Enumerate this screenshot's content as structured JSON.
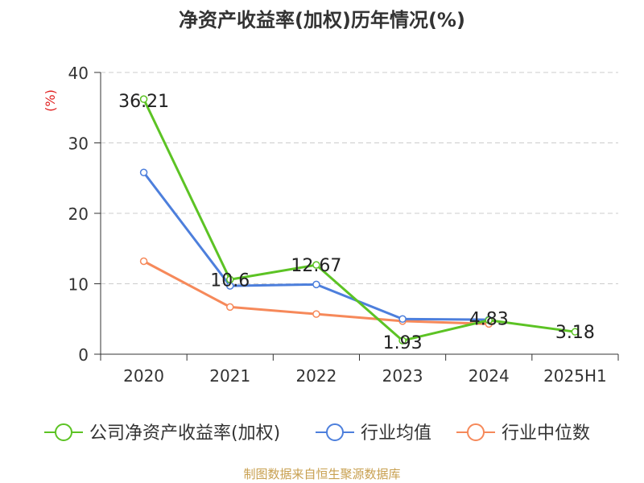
{
  "chart_data": {
    "type": "line",
    "title": "净资产收益率(加权)历年情况(%)",
    "ylabel": "(%)",
    "xlabel": "",
    "categories": [
      "2020",
      "2021",
      "2022",
      "2023",
      "2024",
      "2025H1"
    ],
    "ylim": [
      0,
      40
    ],
    "yticks": [
      0,
      10,
      20,
      30,
      40
    ],
    "grid": true,
    "legend_position": "bottom",
    "series": [
      {
        "name": "公司净资产收益率(加权)",
        "color": "#5cc324",
        "values": [
          36.21,
          10.6,
          12.67,
          1.93,
          4.83,
          3.18
        ],
        "data_labels": [
          "36.21",
          "10.6",
          "12.67",
          "1.93",
          "4.83",
          "3.18"
        ]
      },
      {
        "name": "行业均值",
        "color": "#4d7fdc",
        "values": [
          25.8,
          9.7,
          9.9,
          5.0,
          4.9,
          null
        ]
      },
      {
        "name": "行业中位数",
        "color": "#f6895a",
        "values": [
          13.2,
          6.7,
          5.7,
          4.7,
          4.3,
          null
        ]
      }
    ]
  },
  "colors": {
    "title": "#333333",
    "axis": "#333333",
    "grid": "#cccccc",
    "ylabel": "#e02020",
    "source": "#c8a050"
  },
  "source": "制图数据来自恒生聚源数据库"
}
